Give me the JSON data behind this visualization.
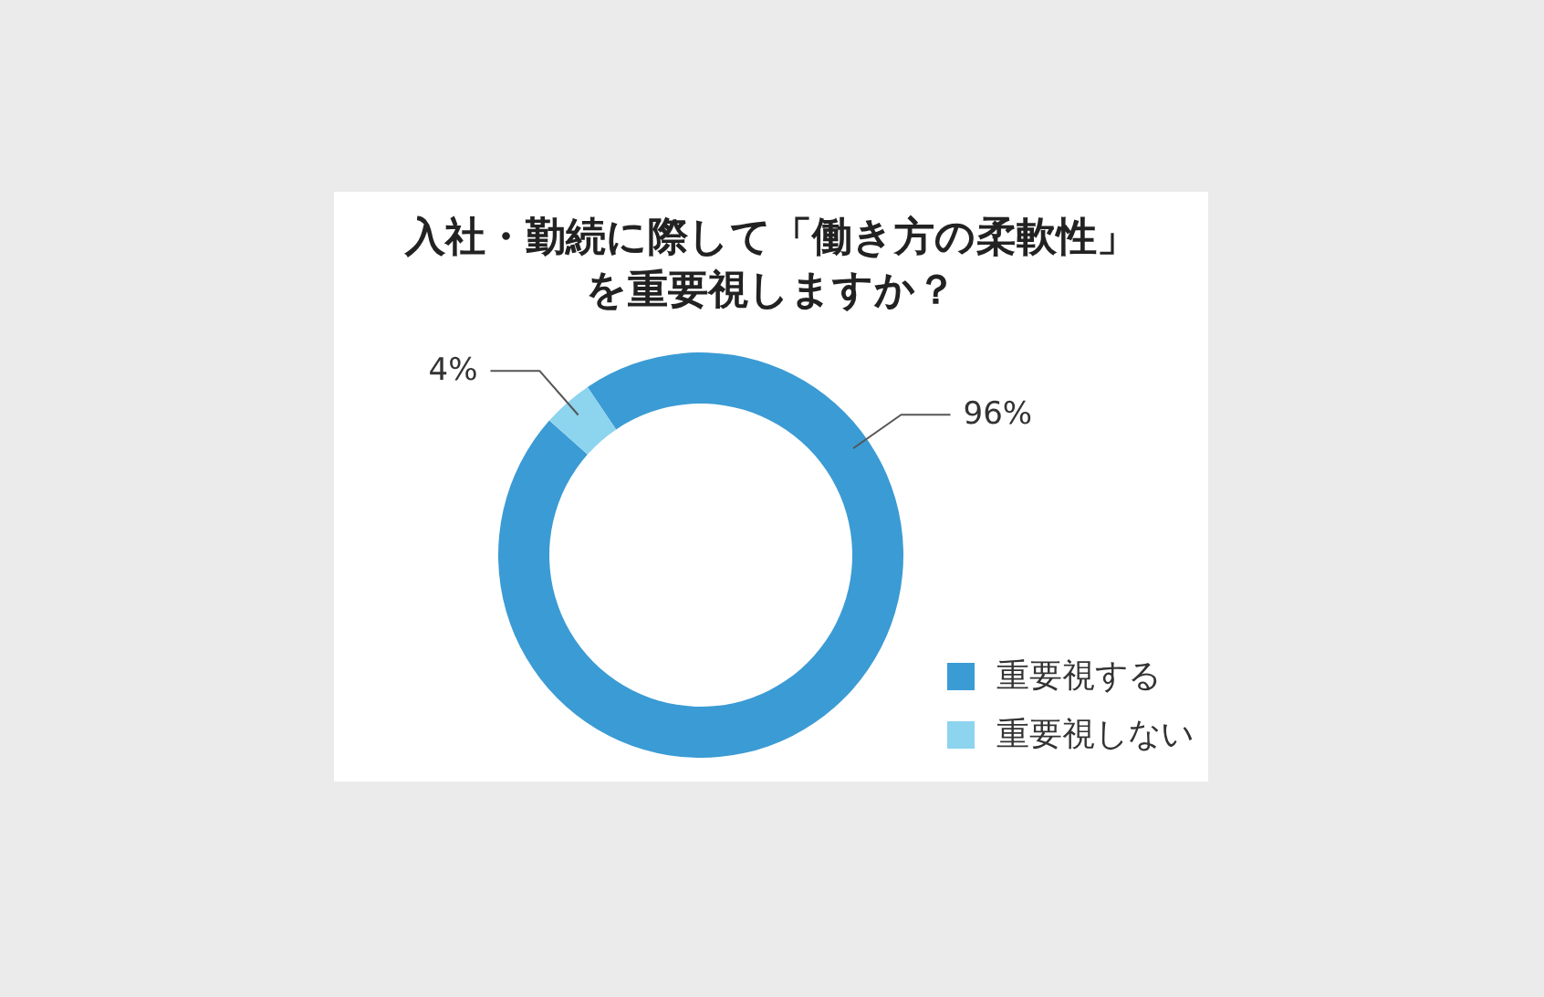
{
  "chart_data": {
    "type": "donut",
    "title": "入社・勤続に際して「働き方の柔軟性」を重要視しますか？",
    "categories": [
      "重要視する",
      "重要視しない"
    ],
    "values": [
      96,
      4
    ],
    "colors": [
      "#3b9bd4",
      "#8dd4ef"
    ],
    "value_labels": [
      "96%",
      "4%"
    ],
    "legend": "bottom right"
  }
}
